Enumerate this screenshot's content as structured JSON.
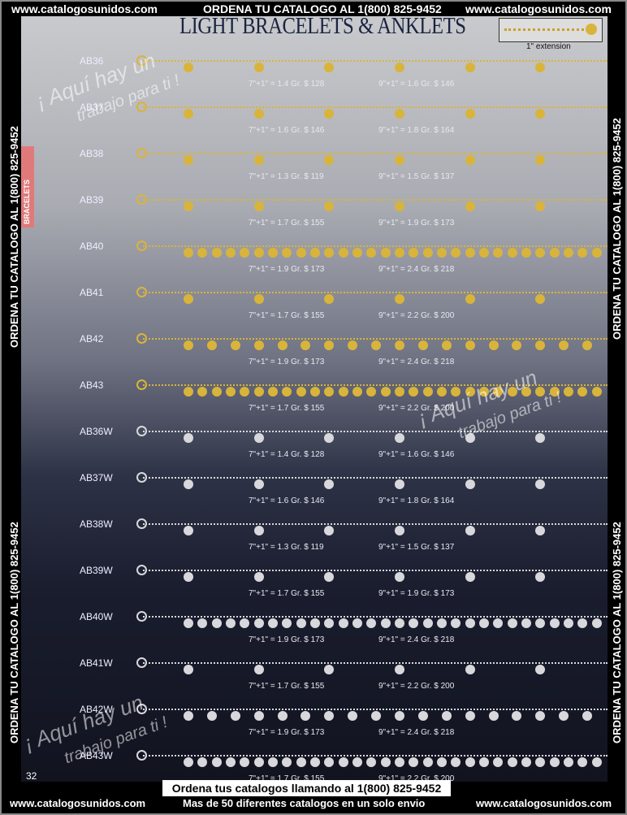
{
  "header": {
    "site_left": "www.catalogosunidos.com",
    "order": "ORDENA TU CATALOGO AL 1(800) 825-9452",
    "site_right": "www.catalogosunidos.com"
  },
  "title": "LIGHT BRACELETS & ANKLETS",
  "extension_label": "1\" extension",
  "side_text": "ORDENA TU CATALOGO AL 1(800) 825-9452",
  "tab_label": "BRACELETS",
  "watermark": {
    "line1": "¡ Aquí hay un",
    "line2": "trabajo para ti !"
  },
  "colors": {
    "gold": "#d9b43a",
    "silver": "#d8d8dc",
    "tab": "#e07a7a"
  },
  "items": [
    {
      "code": "AB36",
      "metal": "gold",
      "p7": "7\"+1\" = 1.4 Gr.  $ 128",
      "p9": "9\"+1\" = 1.6 Gr.  $ 146"
    },
    {
      "code": "AB37",
      "metal": "gold",
      "p7": "7\"+1\" = 1.6 Gr.  $ 146",
      "p9": "9\"+1\" = 1.8 Gr.  $ 164"
    },
    {
      "code": "AB38",
      "metal": "gold",
      "p7": "7\"+1\" = 1.3 Gr.  $ 119",
      "p9": "9\"+1\" = 1.5 Gr.  $ 137"
    },
    {
      "code": "AB39",
      "metal": "gold",
      "p7": "7\"+1\" = 1.7 Gr.  $ 155",
      "p9": "9\"+1\" = 1.9 Gr.  $ 173"
    },
    {
      "code": "AB40",
      "metal": "gold",
      "p7": "7\"+1\" = 1.9 Gr.  $ 173",
      "p9": "9\"+1\" = 2.4 Gr.  $ 218"
    },
    {
      "code": "AB41",
      "metal": "gold",
      "p7": "7\"+1\" = 1.7 Gr.  $ 155",
      "p9": "9\"+1\" = 2.2 Gr.  $ 200"
    },
    {
      "code": "AB42",
      "metal": "gold",
      "p7": "7\"+1\" = 1.9 Gr.  $ 173",
      "p9": "9\"+1\" = 2.4 Gr.  $ 218"
    },
    {
      "code": "AB43",
      "metal": "gold",
      "p7": "7\"+1\" = 1.7 Gr.  $ 155",
      "p9": "9\"+1\" = 2.2 Gr.  $ 200"
    },
    {
      "code": "AB36W",
      "metal": "silver",
      "p7": "7\"+1\" = 1.4 Gr.  $ 128",
      "p9": "9\"+1\" = 1.6 Gr.  $ 146"
    },
    {
      "code": "AB37W",
      "metal": "silver",
      "p7": "7\"+1\" = 1.6 Gr.  $ 146",
      "p9": "9\"+1\" = 1.8 Gr.  $ 164"
    },
    {
      "code": "AB38W",
      "metal": "silver",
      "p7": "7\"+1\" = 1.3 Gr.  $ 119",
      "p9": "9\"+1\" = 1.5 Gr.  $ 137"
    },
    {
      "code": "AB39W",
      "metal": "silver",
      "p7": "7\"+1\" = 1.7 Gr.  $ 155",
      "p9": "9\"+1\" = 1.9 Gr.  $ 173"
    },
    {
      "code": "AB40W",
      "metal": "silver",
      "p7": "7\"+1\" = 1.9 Gr.  $ 173",
      "p9": "9\"+1\" = 2.4 Gr.  $ 218"
    },
    {
      "code": "AB41W",
      "metal": "silver",
      "p7": "7\"+1\" = 1.7 Gr.  $ 155",
      "p9": "9\"+1\" = 2.2 Gr.  $ 200"
    },
    {
      "code": "AB42W",
      "metal": "silver",
      "p7": "7\"+1\" = 1.9 Gr.  $ 173",
      "p9": "9\"+1\" = 2.4 Gr.  $ 218"
    },
    {
      "code": "AB43W",
      "metal": "silver",
      "p7": "7\"+1\" = 1.7 Gr.  $ 155",
      "p9": "9\"+1\" = 2.2 Gr.  $ 200"
    }
  ],
  "page_number": "32",
  "footer": {
    "banner": "Ordena tus catalogos llamando al 1(800) 825-9452",
    "site_left": "www.catalogosunidos.com",
    "tagline": "Mas de 50 diferentes catalogos en un solo envio",
    "site_right": "www.catalogosunidos.com"
  }
}
